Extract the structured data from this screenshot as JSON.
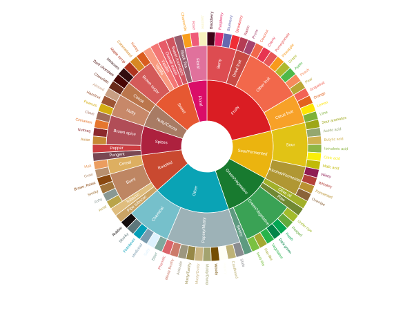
{
  "chart_data": {
    "type": "sunburst",
    "title": "",
    "tiers": [
      {
        "name": "Fruity",
        "color": "#da1d23",
        "children": [
          {
            "name": "Berry",
            "color": "#dd4c51",
            "children": [
              {
                "name": "Blackberry",
                "color": "#3e0317"
              },
              {
                "name": "Raspberry",
                "color": "#e62969"
              },
              {
                "name": "Blueberry",
                "color": "#6569b0"
              },
              {
                "name": "Strawberry",
                "color": "#ef2d36"
              }
            ]
          },
          {
            "name": "Dried fruit",
            "color": "#c94a44",
            "children": [
              {
                "name": "Raisin",
                "color": "#b53b54"
              },
              {
                "name": "Prune",
                "color": "#a5446f"
              }
            ]
          },
          {
            "name": "Other fruit",
            "color": "#f2684b",
            "children": [
              {
                "name": "Coconut",
                "color": "#f2684b"
              },
              {
                "name": "Cherry",
                "color": "#e73451"
              },
              {
                "name": "Pomegranate",
                "color": "#e65656"
              },
              {
                "name": "Pineapple",
                "color": "#f89a1c"
              },
              {
                "name": "Grape",
                "color": "#aeb92c"
              },
              {
                "name": "Apple",
                "color": "#4eb849"
              },
              {
                "name": "Peach",
                "color": "#f68a5c"
              },
              {
                "name": "Pear",
                "color": "#baa635"
              }
            ]
          },
          {
            "name": "Citrus fruit",
            "color": "#f7a128",
            "children": [
              {
                "name": "Grapefruit",
                "color": "#f26355"
              },
              {
                "name": "Orange",
                "color": "#e2631e"
              },
              {
                "name": "Lemon",
                "color": "#fde404"
              },
              {
                "name": "Lime",
                "color": "#7eb138"
              }
            ]
          }
        ]
      },
      {
        "name": "Sour/Fermented",
        "color": "#ebb40f",
        "children": [
          {
            "name": "Sour",
            "color": "#e1c315",
            "children": [
              {
                "name": "Sour aromatics",
                "color": "#9ea718"
              },
              {
                "name": "Acetic acid",
                "color": "#94a76f"
              },
              {
                "name": "Butyric acid",
                "color": "#d0b24f"
              },
              {
                "name": "Isovaleric acid",
                "color": "#8eb646"
              },
              {
                "name": "Citric acid",
                "color": "#faef07"
              },
              {
                "name": "Malic acid",
                "color": "#c1ba07"
              }
            ]
          },
          {
            "name": "Alcohol/Fermented",
            "color": "#b09733",
            "children": [
              {
                "name": "Winey",
                "color": "#8f1c53"
              },
              {
                "name": "Whiskey",
                "color": "#b34039"
              },
              {
                "name": "Fermented",
                "color": "#ba9232"
              },
              {
                "name": "Overripe",
                "color": "#8b6439"
              }
            ]
          }
        ]
      },
      {
        "name": "Green/Vegetative",
        "color": "#187a2f",
        "children": [
          {
            "name": "Olive oil",
            "color": "#a2b029"
          },
          {
            "name": "Raw",
            "color": "#718933"
          },
          {
            "name": "Green/Vegetative",
            "color": "#3aa255",
            "children": [
              {
                "name": "Under-ripe",
                "color": "#a2bb2b"
              },
              {
                "name": "Peapod",
                "color": "#62aa3c"
              },
              {
                "name": "Fresh",
                "color": "#03a653"
              },
              {
                "name": "Dark green",
                "color": "#038549"
              },
              {
                "name": "Vegetative",
                "color": "#28b44b"
              },
              {
                "name": "Hay-like",
                "color": "#a3a830"
              },
              {
                "name": "Herb-like",
                "color": "#7ac141"
              }
            ]
          },
          {
            "name": "Beany",
            "color": "#5e9a80"
          }
        ]
      },
      {
        "name": "Other",
        "color": "#0aa3b5",
        "children": [
          {
            "name": "Papery/Musty",
            "color": "#9db2b7",
            "children": [
              {
                "name": "Stale",
                "color": "#8b8c90"
              },
              {
                "name": "Cardboard",
                "color": "#beb276"
              },
              {
                "name": "Papery",
                "color": "#fefef4"
              },
              {
                "name": "Woody",
                "color": "#744e03"
              },
              {
                "name": "Moldy/Damp",
                "color": "#a3a36f"
              },
              {
                "name": "Musty/Dusty",
                "color": "#c9b583"
              },
              {
                "name": "Musty/Earthy",
                "color": "#978847"
              },
              {
                "name": "Animalic",
                "color": "#9d977f"
              },
              {
                "name": "Meaty Brothy",
                "color": "#cc7b6a"
              },
              {
                "name": "Phenolic",
                "color": "#db646a"
              }
            ]
          },
          {
            "name": "Chemical",
            "color": "#76c0cb",
            "children": [
              {
                "name": "Bitter",
                "color": "#80a89d"
              },
              {
                "name": "Salty",
                "color": "#def2fd"
              },
              {
                "name": "Medicinal",
                "color": "#7a9bae"
              },
              {
                "name": "Petroleum",
                "color": "#039fb8"
              },
              {
                "name": "Skunky",
                "color": "#5e777b"
              },
              {
                "name": "Rubber",
                "color": "#120c0c"
              }
            ]
          }
        ]
      },
      {
        "name": "Roasted",
        "color": "#c94930",
        "children": [
          {
            "name": "Pipe tobacco",
            "color": "#caa465"
          },
          {
            "name": "Tobacco",
            "color": "#dfbd7e"
          },
          {
            "name": "Burnt",
            "color": "#be8663",
            "children": [
              {
                "name": "Acrid",
                "color": "#b9a449"
              },
              {
                "name": "Ashy",
                "color": "#899893"
              },
              {
                "name": "Smoky",
                "color": "#a1743b"
              },
              {
                "name": "Brown, Roast",
                "color": "#894810"
              }
            ]
          },
          {
            "name": "Cereal",
            "color": "#ddaf61",
            "children": [
              {
                "name": "Grain",
                "color": "#b7906f"
              },
              {
                "name": "Malt",
                "color": "#eb9d5f"
              }
            ]
          }
        ]
      },
      {
        "name": "Spices",
        "color": "#ad213e",
        "children": [
          {
            "name": "Pungent",
            "color": "#794752"
          },
          {
            "name": "Pepper",
            "color": "#cc3d41"
          },
          {
            "name": "Brown spice",
            "color": "#b14d57",
            "children": [
              {
                "name": "Anise",
                "color": "#c78936"
              },
              {
                "name": "Nutmeg",
                "color": "#8c292c"
              },
              {
                "name": "Cinnamon",
                "color": "#e5762e"
              },
              {
                "name": "Clove",
                "color": "#a16c5a"
              }
            ]
          }
        ]
      },
      {
        "name": "Nutty/Cocoa",
        "color": "#a87b64",
        "children": [
          {
            "name": "Nutty",
            "color": "#c78869",
            "children": [
              {
                "name": "Peanuts",
                "color": "#d4ad12"
              },
              {
                "name": "Hazelnut",
                "color": "#9d5433"
              },
              {
                "name": "Almond",
                "color": "#c89f83"
              }
            ]
          },
          {
            "name": "Cocoa",
            "color": "#bb764c",
            "children": [
              {
                "name": "Chocolate",
                "color": "#692a19"
              },
              {
                "name": "Dark chocolate",
                "color": "#470604"
              }
            ]
          }
        ]
      },
      {
        "name": "Sweet",
        "color": "#e65832",
        "children": [
          {
            "name": "Brown sugar",
            "color": "#d45a59",
            "children": [
              {
                "name": "Molasses",
                "color": "#310d0f"
              },
              {
                "name": "Maple syrup",
                "color": "#ae341f"
              },
              {
                "name": "Caramelized",
                "color": "#d78823"
              },
              {
                "name": "Honey",
                "color": "#da5c1f"
              }
            ]
          },
          {
            "name": "Vanilla",
            "color": "#f89a80"
          },
          {
            "name": "Vanillin",
            "color": "#f37674"
          },
          {
            "name": "Overall sweet",
            "color": "#e75b68"
          },
          {
            "name": "Sweet Aromatics",
            "color": "#d0545f"
          }
        ]
      },
      {
        "name": "Floral",
        "color": "#da0d68",
        "children": [
          {
            "name": "Black Tea",
            "color": "#975e6d"
          },
          {
            "name": "Floral",
            "color": "#e0719c",
            "children": [
              {
                "name": "Chamomile",
                "color": "#f99e1c"
              },
              {
                "name": "Rose",
                "color": "#ef5a78"
              },
              {
                "name": "Jasmine",
                "color": "#f7f1bd"
              }
            ]
          }
        ]
      }
    ]
  }
}
